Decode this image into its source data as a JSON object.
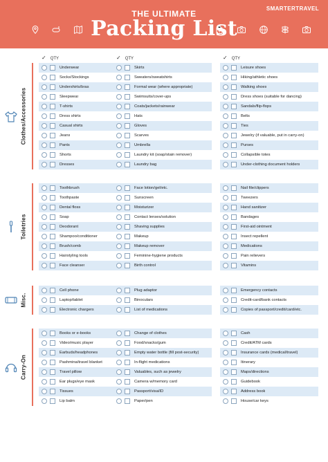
{
  "header": {
    "tag": "THE ULTIMATE",
    "title": "Packing List",
    "brand": "SMARTERTRAVEL",
    "icons": [
      "map-pin-icon",
      "snorkel-icon",
      "map-icon",
      "luggage-icon",
      "camera-icon",
      "globe-icon",
      "signpost-icon",
      "camera-icon"
    ]
  },
  "column_header": {
    "check": "✓",
    "qty": "QTY"
  },
  "sections": [
    {
      "label": "Clothes/Accessories",
      "icon": "tshirt-icon",
      "columns": [
        [
          "Underwear",
          "Socks/Stockings",
          "Undershirts/bras",
          "Sleepwear",
          "T-shirts",
          "Dress shirts",
          "Casual shirts",
          "Jeans",
          "Pants",
          "Shorts",
          "Dresses"
        ],
        [
          "Skirts",
          "Sweaters/sweatshirts",
          "Formal wear (where appropriate)",
          "Swimsuits/cover-ups",
          "Coats/jackets/rainwear",
          "Hats",
          "Gloves",
          "Scarves",
          "Umbrella",
          "Laundry kit (soap/stain remover)",
          "Laundry bag"
        ],
        [
          "Leisure shoes",
          "Hiking/athletic shoes",
          "Walking shoes",
          "Dress shoes (suitable for dancing)",
          "Sandals/flip-flops",
          "Belts",
          "Ties",
          "Jewelry (if valuable, put in carry-on)",
          "Purses",
          "Collapsible totes",
          "Under-clothing document holders"
        ]
      ]
    },
    {
      "label": "Toiletries",
      "icon": "toothbrush-icon",
      "columns": [
        [
          "Toothbrush",
          "Toothpaste",
          "Dental floss",
          "Soap",
          "Deodorant",
          "Shampoo/conditioner",
          "Brush/comb",
          "Hairstyling tools",
          "Face cleanser"
        ],
        [
          "Face lotion/gel/etc.",
          "Sunscreen",
          "Moisturizer",
          "Contact lenses/solution",
          "Shaving supplies",
          "Makeup",
          "Makeup remover",
          "Feminine-hygiene products",
          "Birth control"
        ],
        [
          "Nail file/clippers",
          "Tweezers",
          "Hand sanitizer",
          "Bandages",
          "First-aid ointment",
          "Insect repellent",
          "Medications",
          "Pain relievers",
          "Vitamins"
        ]
      ]
    },
    {
      "label": "Misc.",
      "icon": "phone-icon",
      "columns": [
        [
          "Cell phone",
          "Laptop/tablet",
          "Electronic chargers"
        ],
        [
          "Plug adaptor",
          "Binoculars",
          "List of medications"
        ],
        [
          "Emergency contacts",
          "Credit-card/bank contacts",
          "Copies of passport/credit/card/etc."
        ]
      ]
    },
    {
      "label": "Carry-On",
      "icon": "headphones-icon",
      "columns": [
        [
          "Books or e-books",
          "Video/music player",
          "Earbuds/headphones",
          "Pashmina/travel blanket",
          "Travel pillow",
          "Ear plugs/eye mask",
          "Tissues",
          "Lip balm"
        ],
        [
          "Change of clothes",
          "Food/snacks/gum",
          "Empty water bottle (fill post-security)",
          "In-flight medications",
          "Valuables, such as jewelry",
          "Camera w/memory card",
          "Passport/visa/ID",
          "Paper/pen"
        ],
        [
          "Cash",
          "Credit/ATM cards",
          "Insurance cards (medical/travel)",
          "Itinerary",
          "Maps/directions",
          "Guidebook",
          "Address book",
          "House/car keys"
        ]
      ]
    }
  ],
  "colors": {
    "accent": "#e8705c",
    "row_stripe": "#ddeaf6",
    "checkbox_border": "#8aa4bd"
  }
}
